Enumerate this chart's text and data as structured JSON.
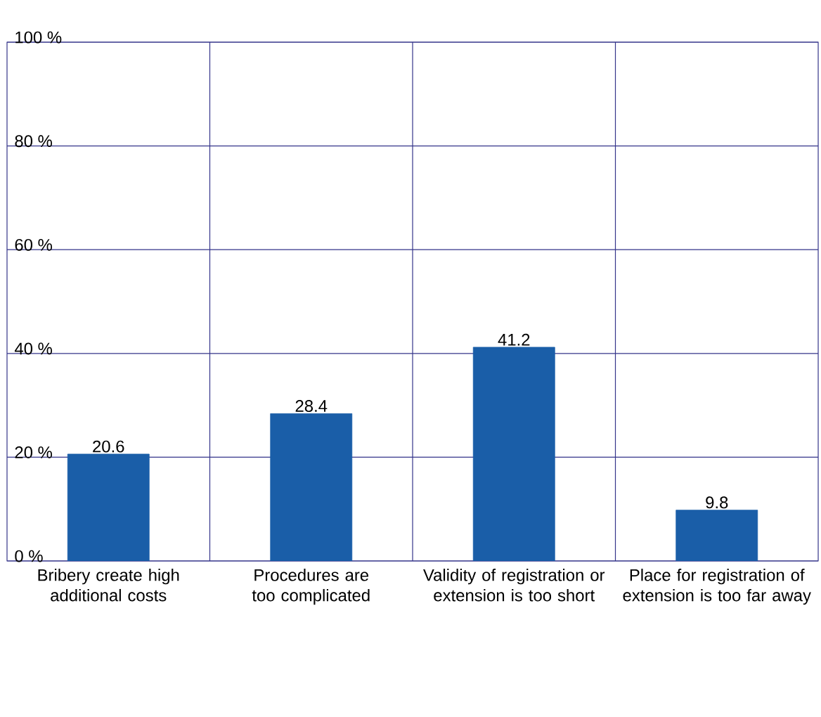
{
  "chart_data": {
    "type": "bar",
    "categories": [
      "Bribery create high additional costs",
      "Procedures are too complicated",
      "Validity of registration or extension is too short",
      "Place for registration of extension is too far away"
    ],
    "values": [
      20.6,
      28.4,
      41.2,
      9.8
    ],
    "color": "#1a5ea8",
    "ylim": [
      0,
      100
    ],
    "yticks": [
      {
        "value": 0,
        "label": "0 %"
      },
      {
        "value": 20,
        "label": "20 %"
      },
      {
        "value": 40,
        "label": "40 %"
      },
      {
        "value": 60,
        "label": "60 %"
      },
      {
        "value": 80,
        "label": "80 %"
      },
      {
        "value": 100,
        "label": "100 %"
      }
    ],
    "grid": true,
    "data_labels": true
  }
}
